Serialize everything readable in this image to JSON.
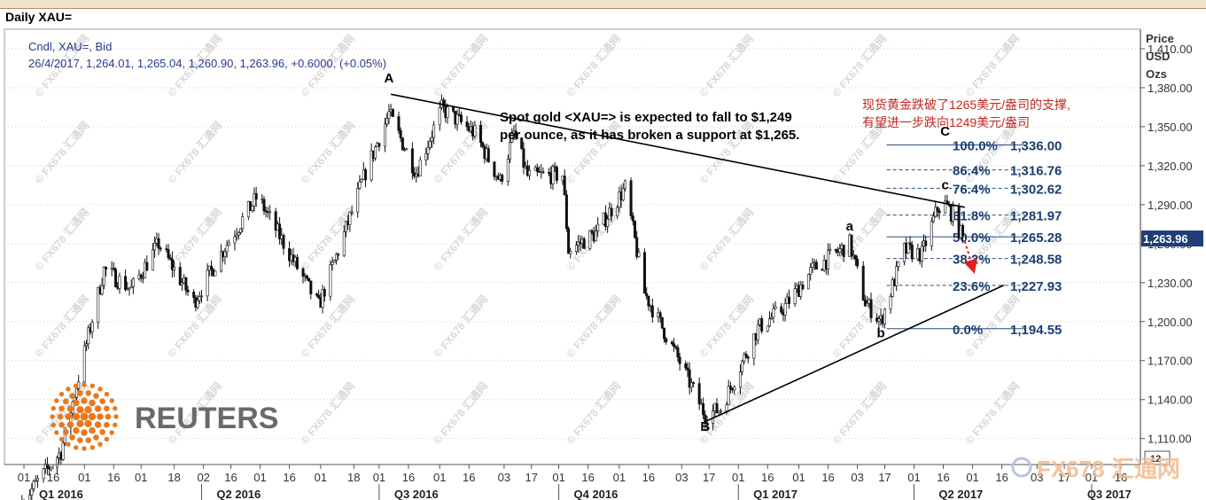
{
  "header": {
    "title": "Daily XAU=",
    "legend_line1": "Cndl, XAU=, Bid",
    "legend_line2": "26/4/2017, 1,264.01, 1,265.04, 1,260.90, 1,263.96, +0.6000, (+0.05%)"
  },
  "price_axis": {
    "title_line1": "Price",
    "title_line2": "USD",
    "title_line3": "Ozs",
    "last_price": "1,263.96",
    "corner": "12"
  },
  "annotations": {
    "english_line1": "Spot gold <XAU=> is expected to fall to $1,249",
    "english_line2": "per ounce, as it has broken  a support at $1,265.",
    "chinese_line1": "现货黄金跌破了1265美元/盎司的支撑,",
    "chinese_line2": "有望进一步跌向1249美元/盎司"
  },
  "logos": {
    "reuters": "REUTERS",
    "fx678": "FX678 汇通网",
    "watermark": "© FX678 汇通网"
  },
  "colors": {
    "up": "#ffffff",
    "down": "#101010",
    "fib": "#2e4d7c",
    "fib_text": "#1b3f73",
    "legend": "#2b3a8c",
    "chinese_text": "#c0281f",
    "reuters": "#e8791f",
    "arrow": "#e02020"
  },
  "chart_data": {
    "type": "candlestick",
    "symbol": "XAU=",
    "ylim": [
      1090,
      1425
    ],
    "y_ticks": [
      {
        "v": 1110,
        "label": "1,110.00"
      },
      {
        "v": 1140,
        "label": "1,140.00"
      },
      {
        "v": 1170,
        "label": "1,170.00"
      },
      {
        "v": 1200,
        "label": "1,200.00"
      },
      {
        "v": 1230,
        "label": "1,230.00"
      },
      {
        "v": 1260,
        "label": "1,260.00"
      },
      {
        "v": 1290,
        "label": "1,290.00"
      },
      {
        "v": 1320,
        "label": "1,320.00"
      },
      {
        "v": 1350,
        "label": "1,350.00"
      },
      {
        "v": 1380,
        "label": "1,380.00"
      },
      {
        "v": 1410,
        "label": "1,410.00"
      }
    ],
    "x_ticks": [
      {
        "d": "2016-01-01",
        "label": "01"
      },
      {
        "d": "2016-01-16",
        "label": "16"
      },
      {
        "d": "2016-02-01",
        "label": "01"
      },
      {
        "d": "2016-02-16",
        "label": "16"
      },
      {
        "d": "2016-03-01",
        "label": "01"
      },
      {
        "d": "2016-03-18",
        "label": "18"
      },
      {
        "d": "2016-04-02",
        "label": "02"
      },
      {
        "d": "2016-04-16",
        "label": "16"
      },
      {
        "d": "2016-05-01",
        "label": "01"
      },
      {
        "d": "2016-05-16",
        "label": "16"
      },
      {
        "d": "2016-06-01",
        "label": "01"
      },
      {
        "d": "2016-06-18",
        "label": "18"
      },
      {
        "d": "2016-07-01",
        "label": "01"
      },
      {
        "d": "2016-07-16",
        "label": "16"
      },
      {
        "d": "2016-08-01",
        "label": "01"
      },
      {
        "d": "2016-08-16",
        "label": "16"
      },
      {
        "d": "2016-09-03",
        "label": "03"
      },
      {
        "d": "2016-09-17",
        "label": "17"
      },
      {
        "d": "2016-10-01",
        "label": "01"
      },
      {
        "d": "2016-10-16",
        "label": "16"
      },
      {
        "d": "2016-11-01",
        "label": "01"
      },
      {
        "d": "2016-11-16",
        "label": "16"
      },
      {
        "d": "2016-12-03",
        "label": "03"
      },
      {
        "d": "2016-12-17",
        "label": "17"
      },
      {
        "d": "2017-01-01",
        "label": "01"
      },
      {
        "d": "2017-01-16",
        "label": "16"
      },
      {
        "d": "2017-02-01",
        "label": "01"
      },
      {
        "d": "2017-02-16",
        "label": "16"
      },
      {
        "d": "2017-03-03",
        "label": "03"
      },
      {
        "d": "2017-03-17",
        "label": "17"
      },
      {
        "d": "2017-04-01",
        "label": "01"
      },
      {
        "d": "2017-04-16",
        "label": "16"
      },
      {
        "d": "2017-05-01",
        "label": "01"
      },
      {
        "d": "2017-05-16",
        "label": "16"
      },
      {
        "d": "2017-06-03",
        "label": "03"
      },
      {
        "d": "2017-06-17",
        "label": "17"
      },
      {
        "d": "2017-07-01",
        "label": "01"
      },
      {
        "d": "2017-07-16",
        "label": "16"
      }
    ],
    "quarters": [
      {
        "d": "2016-01-20",
        "label": "Q1 2016"
      },
      {
        "d": "2016-04-20",
        "label": "Q2 2016"
      },
      {
        "d": "2016-07-20",
        "label": "Q3 2016"
      },
      {
        "d": "2016-10-20",
        "label": "Q4 2016"
      },
      {
        "d": "2017-01-20",
        "label": "Q1 2017"
      },
      {
        "d": "2017-04-25",
        "label": "Q2 2017"
      },
      {
        "d": "2017-07-10",
        "label": "Q3 2017"
      }
    ],
    "quarter_dividers": [
      "2016-04-01",
      "2016-07-01",
      "2016-10-01",
      "2017-01-01",
      "2017-04-01",
      "2017-07-01"
    ],
    "price_path": [
      {
        "d": "2015-12-31",
        "v": 1061
      },
      {
        "d": "2016-01-20",
        "v": 1100
      },
      {
        "d": "2016-02-11",
        "v": 1240
      },
      {
        "d": "2016-02-25",
        "v": 1225
      },
      {
        "d": "2016-03-10",
        "v": 1260
      },
      {
        "d": "2016-03-28",
        "v": 1215
      },
      {
        "d": "2016-04-12",
        "v": 1255
      },
      {
        "d": "2016-04-29",
        "v": 1295
      },
      {
        "d": "2016-05-02",
        "v": 1290
      },
      {
        "d": "2016-05-31",
        "v": 1212
      },
      {
        "d": "2016-06-16",
        "v": 1280
      },
      {
        "d": "2016-06-24",
        "v": 1315
      },
      {
        "d": "2016-07-06",
        "v": 1360
      },
      {
        "d": "2016-07-20",
        "v": 1315
      },
      {
        "d": "2016-08-02",
        "v": 1364
      },
      {
        "d": "2016-08-19",
        "v": 1345
      },
      {
        "d": "2016-09-01",
        "v": 1308
      },
      {
        "d": "2016-09-08",
        "v": 1345
      },
      {
        "d": "2016-09-15",
        "v": 1312
      },
      {
        "d": "2016-10-03",
        "v": 1313
      },
      {
        "d": "2016-10-06",
        "v": 1255
      },
      {
        "d": "2016-10-20",
        "v": 1268
      },
      {
        "d": "2016-11-04",
        "v": 1303
      },
      {
        "d": "2016-11-14",
        "v": 1222
      },
      {
        "d": "2016-12-01",
        "v": 1172
      },
      {
        "d": "2016-12-15",
        "v": 1128
      },
      {
        "d": "2016-12-23",
        "v": 1133
      },
      {
        "d": "2017-01-11",
        "v": 1195
      },
      {
        "d": "2017-01-24",
        "v": 1210
      },
      {
        "d": "2017-02-08",
        "v": 1240
      },
      {
        "d": "2017-02-27",
        "v": 1260
      },
      {
        "d": "2017-03-07",
        "v": 1215
      },
      {
        "d": "2017-03-15",
        "v": 1200
      },
      {
        "d": "2017-03-27",
        "v": 1255
      },
      {
        "d": "2017-04-05",
        "v": 1252
      },
      {
        "d": "2017-04-13",
        "v": 1287
      },
      {
        "d": "2017-04-17",
        "v": 1290
      },
      {
        "d": "2017-04-21",
        "v": 1282
      },
      {
        "d": "2017-04-26",
        "v": 1264
      }
    ],
    "wave_labels": [
      {
        "d": "2016-07-06",
        "v": 1384,
        "label": "A"
      },
      {
        "d": "2016-12-15",
        "v": 1116,
        "label": "B"
      },
      {
        "d": "2017-04-17",
        "v": 1343,
        "label": "C"
      },
      {
        "d": "2017-02-27",
        "v": 1270,
        "label": "a"
      },
      {
        "d": "2017-03-15",
        "v": 1188,
        "label": "b"
      },
      {
        "d": "2017-04-17",
        "v": 1302,
        "label": "c"
      }
    ],
    "upper_trendline": {
      "from": {
        "d": "2016-07-07",
        "v": 1375
      },
      "to": {
        "d": "2017-04-27",
        "v": 1288
      }
    },
    "lower_trendline": {
      "from": {
        "d": "2016-12-15",
        "v": 1123
      },
      "to": {
        "d": "2017-05-17",
        "v": 1228
      }
    },
    "fibonacci": [
      {
        "pct": "100.0%",
        "value": "1,336.00",
        "v": 1336.0,
        "style": "solid"
      },
      {
        "pct": "86.4%",
        "value": "1,316.76",
        "v": 1316.76,
        "style": "dashed"
      },
      {
        "pct": "76.4%",
        "value": "1,302.62",
        "v": 1302.62,
        "style": "dashed"
      },
      {
        "pct": "61.8%",
        "value": "1,281.97",
        "v": 1281.97,
        "style": "dashed"
      },
      {
        "pct": "50.0%",
        "value": "1,265.28",
        "v": 1265.28,
        "style": "solid"
      },
      {
        "pct": "38.2%",
        "value": "1,248.58",
        "v": 1248.58,
        "style": "dashed"
      },
      {
        "pct": "23.6%",
        "value": "1,227.93",
        "v": 1227.93,
        "style": "dashed"
      },
      {
        "pct": "0.0%",
        "value": "1,194.55",
        "v": 1194.55,
        "style": "solid"
      }
    ],
    "fib_range": {
      "from": "2017-03-18",
      "to": "2017-05-28"
    },
    "forecast_arrow": {
      "from": {
        "d": "2017-04-27",
        "v": 1262
      },
      "to": {
        "d": "2017-05-01",
        "v": 1242
      }
    },
    "last_value": 1263.96,
    "x_range": [
      "2015-12-22",
      "2017-07-26"
    ]
  }
}
